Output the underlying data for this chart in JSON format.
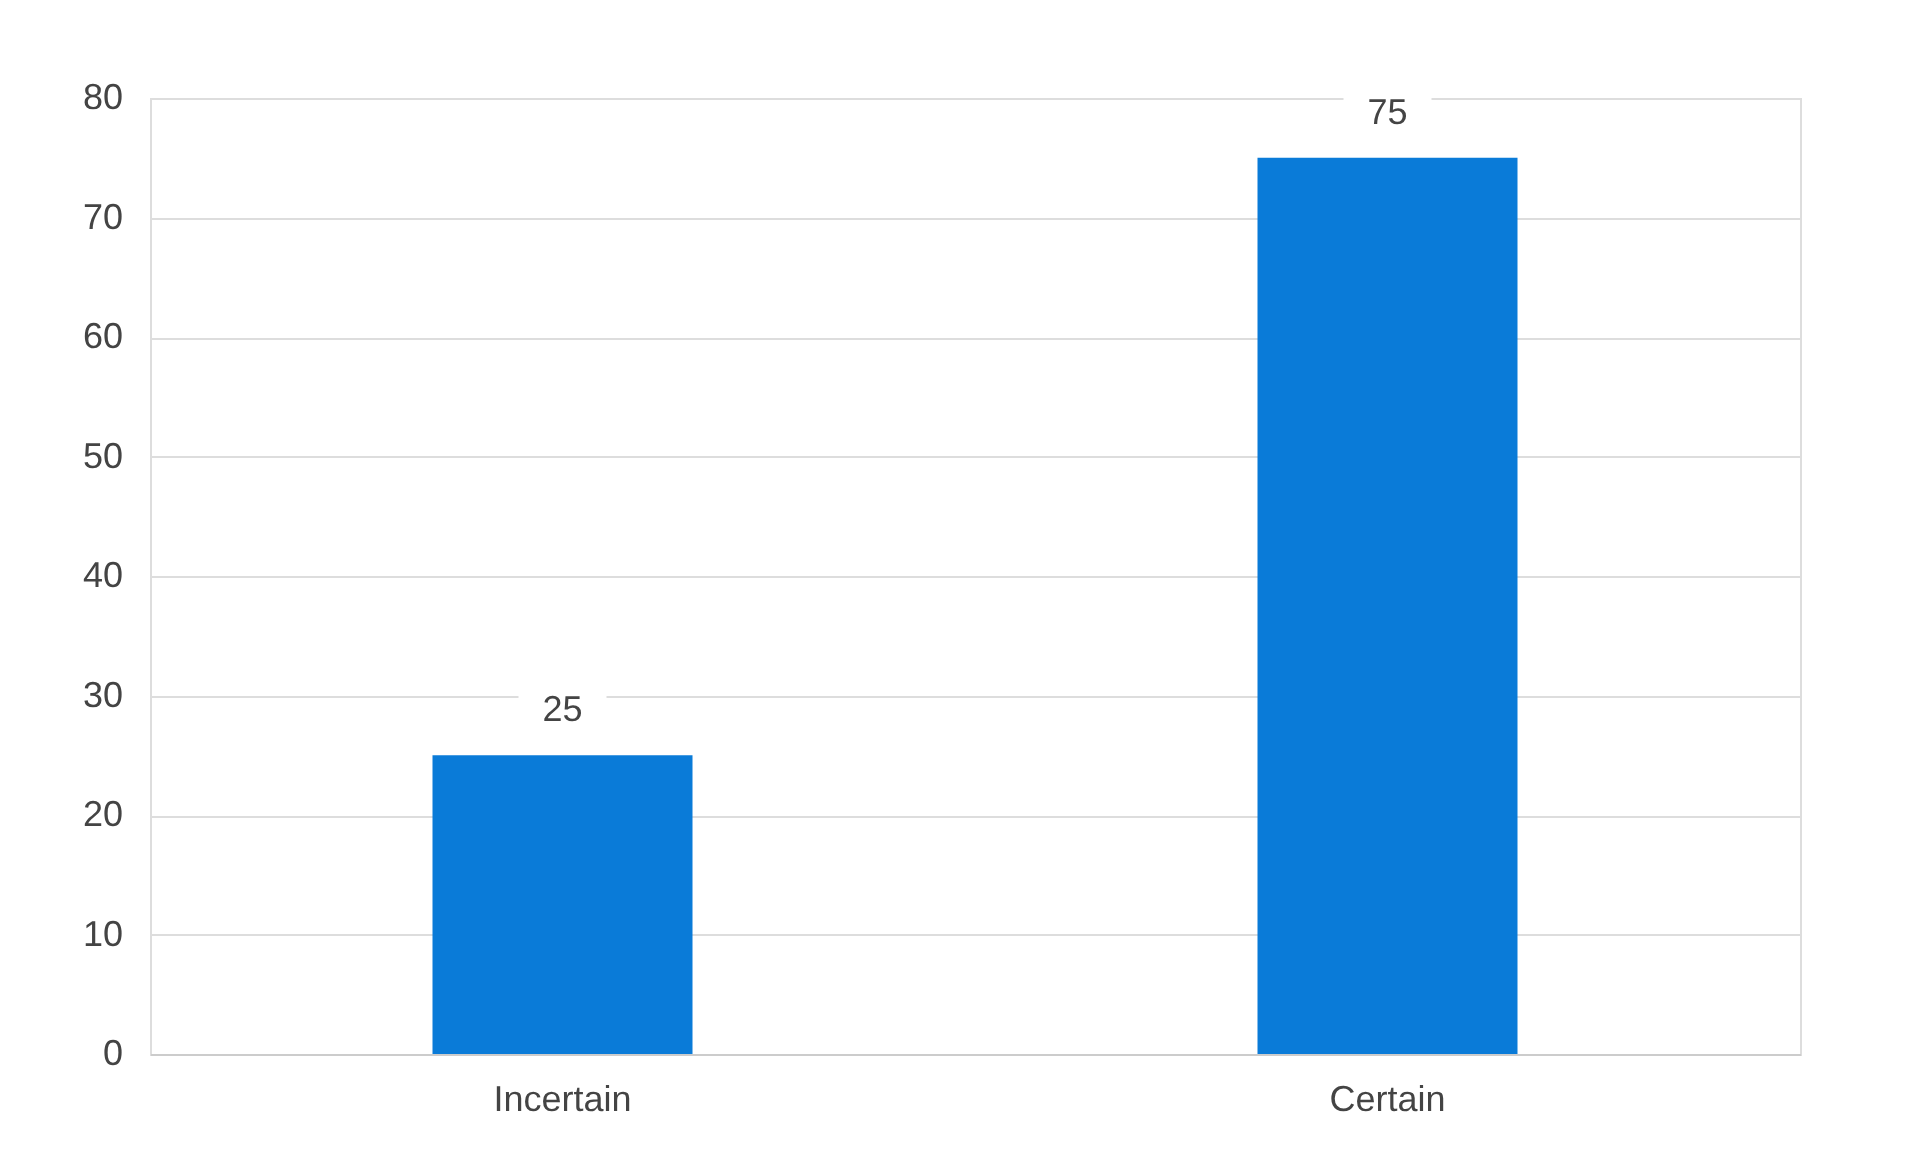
{
  "chart_data": {
    "type": "bar",
    "categories": [
      "Incertain",
      "Certain"
    ],
    "values": [
      25,
      75
    ],
    "color": "#0a7bd8",
    "ylim": [
      0,
      80
    ],
    "yticks": [
      0,
      10,
      20,
      30,
      40,
      50,
      60,
      70,
      80
    ],
    "grid": "y",
    "data_labels": true
  }
}
